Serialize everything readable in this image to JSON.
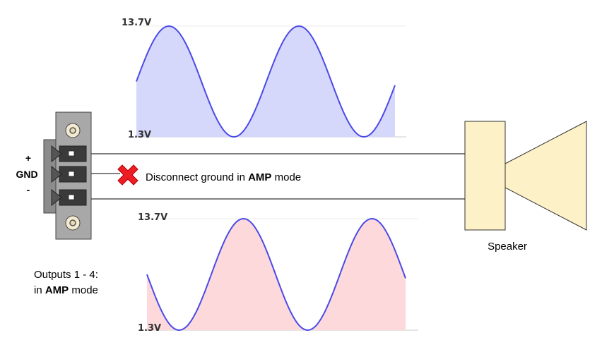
{
  "connector": {
    "pins": [
      {
        "label": "+"
      },
      {
        "label": "GND"
      },
      {
        "label": "-"
      }
    ]
  },
  "note": {
    "prefix": "Disconnect ground in ",
    "bold": "AMP",
    "suffix": " mode"
  },
  "outputs_caption": {
    "line1": "Outputs 1 - 4:",
    "line2_prefix": "in ",
    "line2_bold": "AMP",
    "line2_suffix": " mode"
  },
  "speaker": {
    "label": "Speaker"
  },
  "waveform_top": {
    "max_label": "13.7V",
    "min_label": "1.3V",
    "fill_color": "#d6d8fb",
    "line_color": "#4a4ae8"
  },
  "waveform_bottom": {
    "max_label": "13.7V",
    "min_label": "1.3V",
    "fill_color": "#fdd9dc",
    "line_color": "#4a4ae8"
  },
  "icons": {
    "disconnect": "red-x-icon"
  }
}
